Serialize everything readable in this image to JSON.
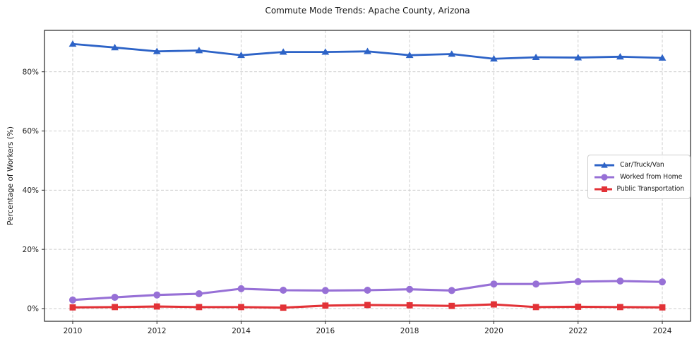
{
  "chart_data": {
    "type": "line",
    "title": "Commute Mode Trends: Apache County, Arizona",
    "xlabel": "",
    "ylabel": "Percentage of Workers (%)",
    "x": [
      2010,
      2011,
      2012,
      2013,
      2014,
      2015,
      2016,
      2017,
      2018,
      2019,
      2020,
      2021,
      2022,
      2023,
      2024
    ],
    "series": [
      {
        "name": "Car/Truck/Van",
        "color": "#2d63c7",
        "marker": "triangle",
        "values": [
          89.4,
          88.2,
          86.9,
          87.2,
          85.6,
          86.7,
          86.7,
          86.9,
          85.6,
          86.0,
          84.4,
          84.9,
          84.8,
          85.1,
          84.7
        ]
      },
      {
        "name": "Worked from Home",
        "color": "#9770d6",
        "marker": "circle",
        "values": [
          2.9,
          3.8,
          4.6,
          5.0,
          6.7,
          6.2,
          6.1,
          6.2,
          6.5,
          6.1,
          8.3,
          8.3,
          9.1,
          9.3,
          9.0
        ]
      },
      {
        "name": "Public Transportation",
        "color": "#e23237",
        "marker": "square",
        "values": [
          0.4,
          0.5,
          0.7,
          0.5,
          0.5,
          0.3,
          1.0,
          1.2,
          1.1,
          0.9,
          1.4,
          0.5,
          0.6,
          0.5,
          0.4
        ]
      }
    ],
    "xticks": {
      "values": [
        2010,
        2012,
        2014,
        2016,
        2018,
        2020,
        2022,
        2024
      ],
      "labels": [
        "2010",
        "2012",
        "2014",
        "2016",
        "2018",
        "2020",
        "2022",
        "2024"
      ]
    },
    "yticks": {
      "values": [
        0,
        20,
        40,
        60,
        80
      ],
      "labels": [
        "0%",
        "20%",
        "40%",
        "60%",
        "80%"
      ]
    },
    "xlim": [
      2009.33,
      2024.67
    ],
    "ylim": [
      -4.3,
      94.0
    ],
    "grid": true,
    "grid_style": "dashed",
    "grid_color": "#cccccc",
    "axis_color": "#262626",
    "legend": {
      "position": "right-center",
      "entries": [
        "Car/Truck/Van",
        "Worked from Home",
        "Public Transportation"
      ]
    }
  }
}
